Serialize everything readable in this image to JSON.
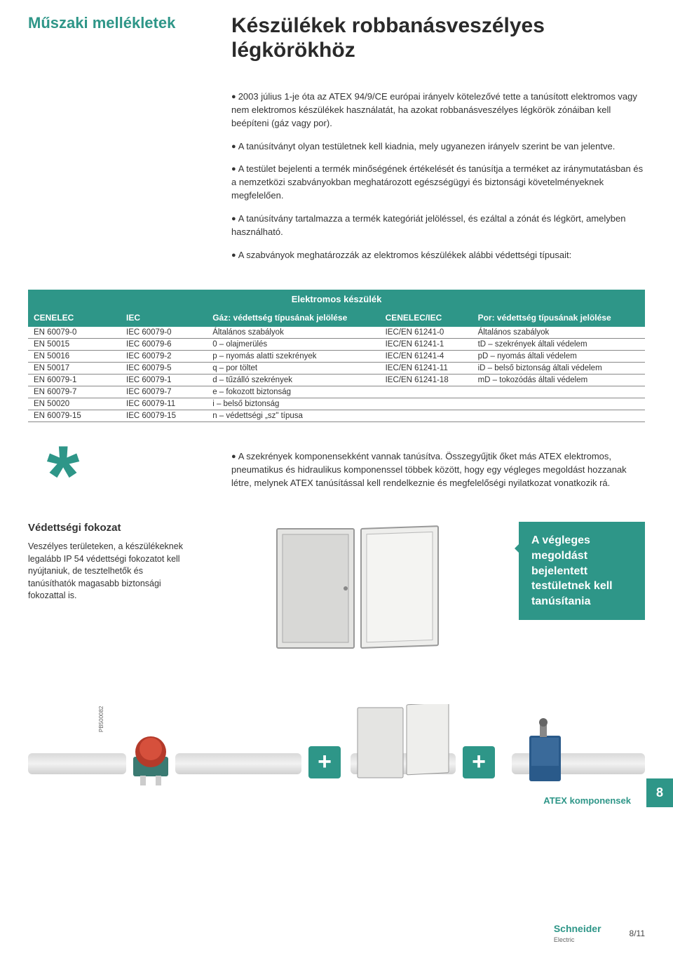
{
  "colors": {
    "accent": "#2e9688",
    "text": "#333333",
    "heading": "#2a2a2a",
    "pipe_light": "#f2f2f2",
    "pipe_dark": "#d0d0d0",
    "rule": "#888888"
  },
  "section_label": "Műszaki mellékletek",
  "main_title": "Készülékek robbanásveszélyes légkörökhöz",
  "paragraphs": [
    "2003 július 1-je óta az ATEX 94/9/CE európai irányelv kötelezővé tette a tanúsított elektromos vagy nem elektromos készülékek használatát, ha azokat robbanásveszélyes légkörök zónáiban kell beépíteni (gáz vagy por).",
    "A tanúsítványt olyan testületnek kell kiadnia, mely ugyanezen irányelv szerint be van jelentve.",
    "A testület bejelenti a termék minőségének értékelését és tanúsítja a terméket az iránymutatásban és a nemzetközi szabványokban meghatározott egészségügyi és biztonsági követelményeknek megfelelően.",
    "A tanúsítvány tartalmazza a termék kategóriát jelöléssel, és ezáltal a zónát és légkört, amelyben használható.",
    "A szabványok meghatározzák az elektromos készülékek alábbi védettségi típusait:"
  ],
  "table": {
    "title": "Elektromos készülék",
    "headers": [
      "CENELEC",
      "IEC",
      "Gáz: védettség típusának jelölése",
      "CENELEC/IEC",
      "Por: védettség típusának jelölése"
    ],
    "rows": [
      [
        "EN 60079-0",
        "IEC 60079-0",
        "Általános szabályok",
        "IEC/EN 61241-0",
        "Általános szabályok"
      ],
      [
        "EN 50015",
        "IEC 60079-6",
        "0 – olajmerülés",
        "IEC/EN 61241-1",
        "tD – szekrények általi védelem"
      ],
      [
        "EN 50016",
        "IEC 60079-2",
        "p – nyomás alatti szekrények",
        "IEC/EN 61241-4",
        "pD – nyomás általi védelem"
      ],
      [
        "EN 50017",
        "IEC 60079-5",
        "q – por töltet",
        "IEC/EN 61241-11",
        "iD – belső biztonság általi védelem"
      ],
      [
        "EN 60079-1",
        "IEC 60079-1",
        "d – tűzálló szekrények",
        "IEC/EN 61241-18",
        "mD – tokozódás általi védelem"
      ],
      [
        "EN 60079-7",
        "IEC 60079-7",
        "e – fokozott biztonság",
        "",
        ""
      ],
      [
        "EN 50020",
        "IEC 60079-11",
        "i – belső biztonság",
        "",
        ""
      ],
      [
        "EN 60079-15",
        "IEC 60079-15",
        "n – védettségi „sz\" típusa",
        "",
        ""
      ]
    ]
  },
  "asterisk_text": "A szekrények komponensekként vannak tanúsítva. Összegyűjtik őket más ATEX elektromos, pneumatikus és hidraulikus komponenssel többek között, hogy egy végleges megoldást hozzanak létre, melynek ATEX tanúsítással kell rendelkeznie és megfelelőségi nyilatkozat vonatkozik rá.",
  "protection": {
    "heading": "Védettségi fokozat",
    "text": "Veszélyes területeken, a készülékeknek legalább IP 54 védettségi fokozatot kell nyújtaniuk, de tesztelhetők és tanúsíthatók magasabb biztonsági fokozattal is."
  },
  "callout": "A végleges megoldást bejelentett testületnek kell tanúsítania",
  "page_tab": "8",
  "ref_code": "PB500082",
  "atex_label": "ATEX komponensek",
  "footer": {
    "logo_main": "Schneider",
    "logo_sub": "Electric",
    "page_num": "8/11"
  }
}
